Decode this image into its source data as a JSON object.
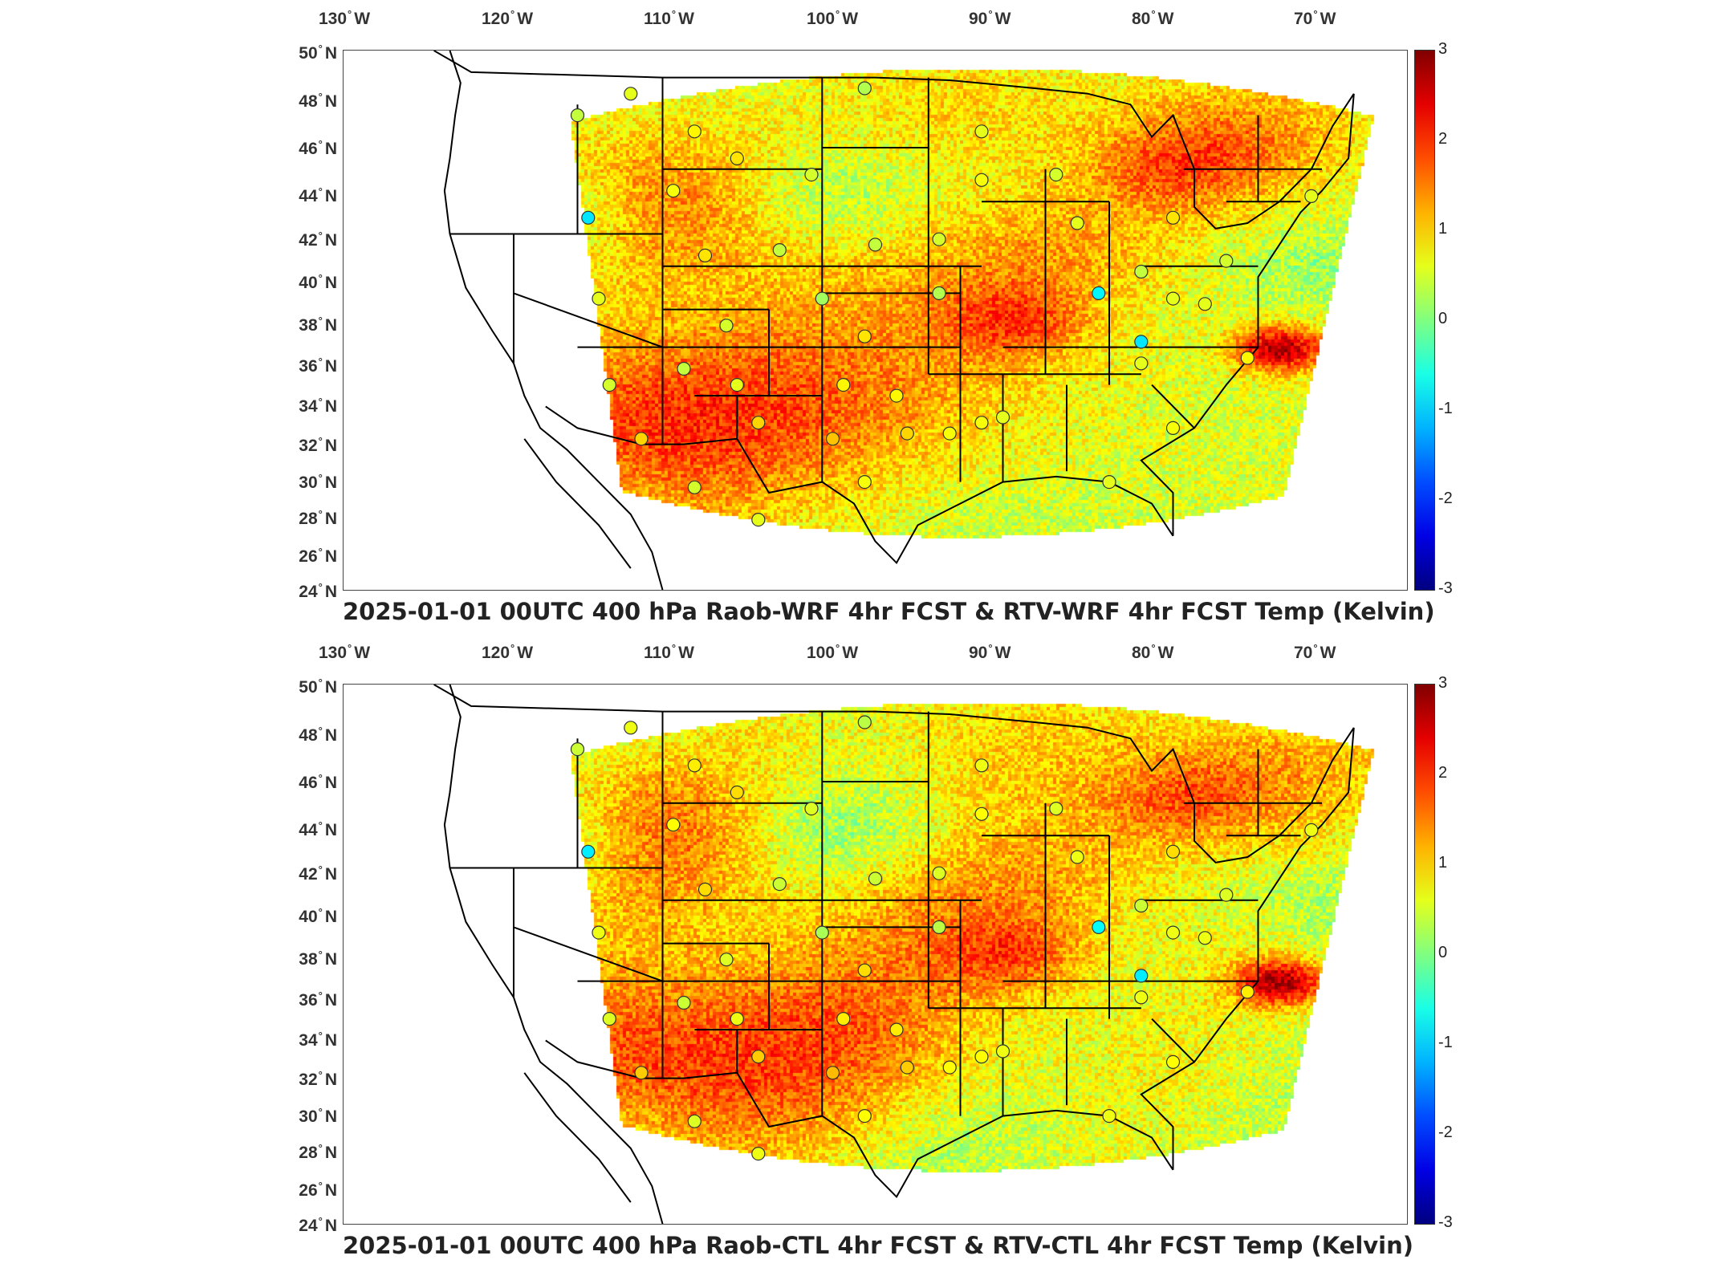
{
  "panels": [
    {
      "title": "2025-01-01 00UTC 400 hPa Raob-WRF 4hr FCST & RTV-WRF 4hr FCST Temp (Kelvin)",
      "variant": 0
    },
    {
      "title": "2025-01-01 00UTC 400 hPa Raob-CTL 4hr FCST & RTV-CTL 4hr FCST Temp (Kelvin)",
      "variant": 1
    }
  ],
  "lon_labels": [
    "130",
    "120",
    "110",
    "100",
    "90",
    "80",
    "70"
  ],
  "lon_suffix": "W",
  "lat_labels": [
    "50",
    "48",
    "46",
    "44",
    "42",
    "40",
    "38",
    "36",
    "34",
    "32",
    "30",
    "28",
    "26",
    "24"
  ],
  "lat_suffix": "N",
  "colorbar": {
    "ticks": [
      "3",
      "2",
      "1",
      "0",
      "-1",
      "-2",
      "-3"
    ],
    "colormap": "jet",
    "min": -3,
    "max": 3
  },
  "colors": {
    "border": "#000000",
    "station_outline": "#333333"
  }
}
